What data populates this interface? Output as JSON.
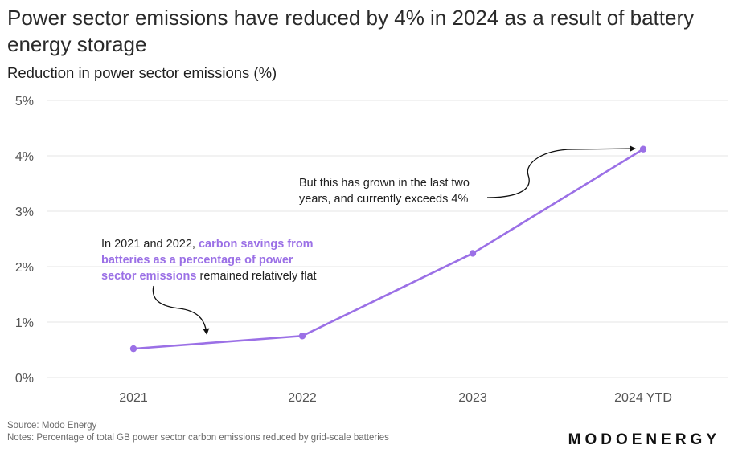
{
  "header": {
    "title": "Power sector emissions have reduced by 4% in 2024 as a result of battery energy storage",
    "subtitle": "Reduction in power sector emissions (%)"
  },
  "chart_data": {
    "type": "line",
    "title": "Power sector emissions have reduced by 4% in 2024 as a result of battery energy storage",
    "ylabel": "Reduction in power sector emissions (%)",
    "xlabel": "",
    "categories": [
      "2021",
      "2022",
      "2023",
      "2024 YTD"
    ],
    "series": [
      {
        "name": "",
        "values": [
          0.52,
          0.75,
          2.24,
          4.12
        ],
        "color": "#9b70e6"
      }
    ],
    "ylim": [
      0,
      5
    ],
    "yticks": [
      0,
      1,
      2,
      3,
      4,
      5
    ],
    "ytick_labels": [
      "0%",
      "1%",
      "2%",
      "3%",
      "4%",
      "5%"
    ],
    "grid": true,
    "annotations": {
      "first": {
        "line1": "In 2021 and 2022, ",
        "line1_highlight": "carbon savings from",
        "line2_highlight": "batteries as a percentage of power",
        "line3_highlight": "sector emissions",
        "line3": " remained relatively flat"
      },
      "second": {
        "line1": "But this has grown in the last two",
        "line2": "years, and currently exceeds 4%"
      }
    }
  },
  "footer": {
    "source": "Source: Modo Energy",
    "notes": "Notes: Percentage of total GB power sector carbon emissions reduced by grid-scale batteries",
    "brand": "MODOENERGY"
  }
}
